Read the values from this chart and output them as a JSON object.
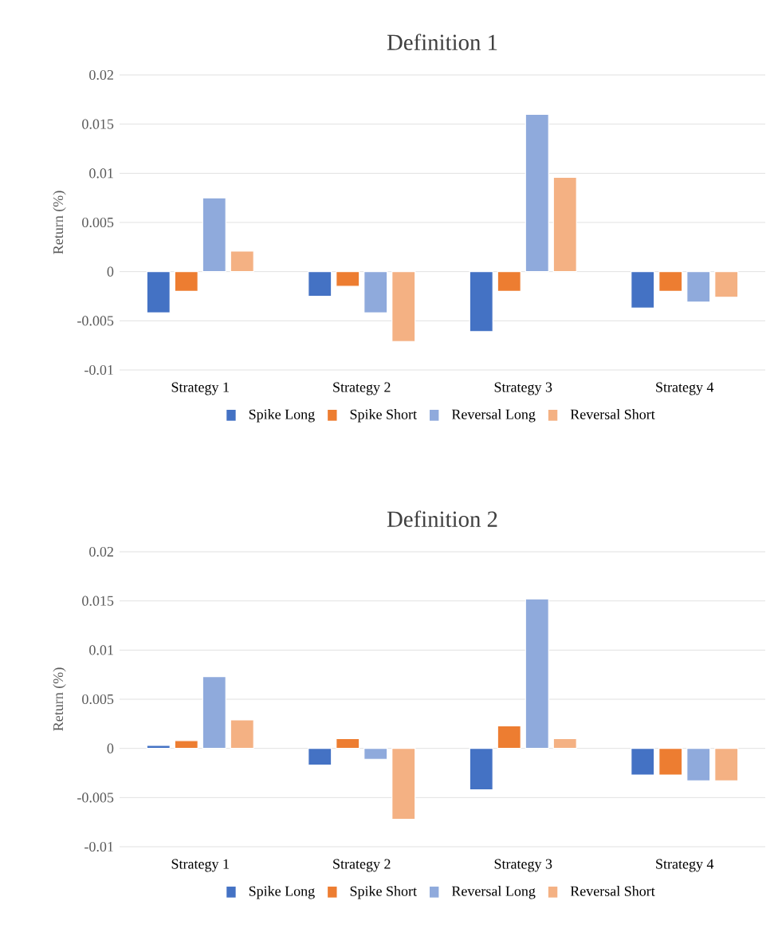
{
  "chart_data": [
    {
      "type": "bar",
      "title": "Definition 1",
      "ylabel": "Return (%)",
      "categories": [
        "Strategy 1",
        "Strategy 2",
        "Strategy 3",
        "Strategy 4"
      ],
      "series": [
        {
          "name": "Spike Long",
          "color": "#4472c4",
          "values": [
            -0.0042,
            -0.0025,
            -0.0061,
            -0.0037
          ]
        },
        {
          "name": "Spike Short",
          "color": "#ed7d31",
          "values": [
            -0.002,
            -0.0015,
            -0.002,
            -0.002
          ]
        },
        {
          "name": "Reversal Long",
          "color": "#8faadc",
          "values": [
            0.0075,
            -0.0042,
            0.016,
            -0.0031
          ]
        },
        {
          "name": "Reversal Short",
          "color": "#f4b183",
          "values": [
            0.0021,
            -0.0071,
            0.0096,
            -0.0026
          ]
        }
      ],
      "ylim": [
        -0.01,
        0.02
      ],
      "yticks": [
        -0.01,
        -0.005,
        0,
        0.005,
        0.01,
        0.015,
        0.02
      ],
      "grid": "y",
      "legend": "bottom"
    },
    {
      "type": "bar",
      "title": "Definition 2",
      "ylabel": "Return (%)",
      "categories": [
        "Strategy 1",
        "Strategy 2",
        "Strategy 3",
        "Strategy 4"
      ],
      "series": [
        {
          "name": "Spike Long",
          "color": "#4472c4",
          "values": [
            0.0003,
            -0.0017,
            -0.0042,
            -0.0027
          ]
        },
        {
          "name": "Spike Short",
          "color": "#ed7d31",
          "values": [
            0.0008,
            0.001,
            0.0023,
            -0.0027
          ]
        },
        {
          "name": "Reversal Long",
          "color": "#8faadc",
          "values": [
            0.0073,
            -0.0011,
            0.0152,
            -0.0033
          ]
        },
        {
          "name": "Reversal Short",
          "color": "#f4b183",
          "values": [
            0.0029,
            -0.0072,
            0.001,
            -0.0033
          ]
        }
      ],
      "ylim": [
        -0.01,
        0.02
      ],
      "yticks": [
        -0.01,
        -0.005,
        0,
        0.005,
        0.01,
        0.015,
        0.02
      ],
      "grid": "y",
      "legend": "bottom"
    }
  ]
}
